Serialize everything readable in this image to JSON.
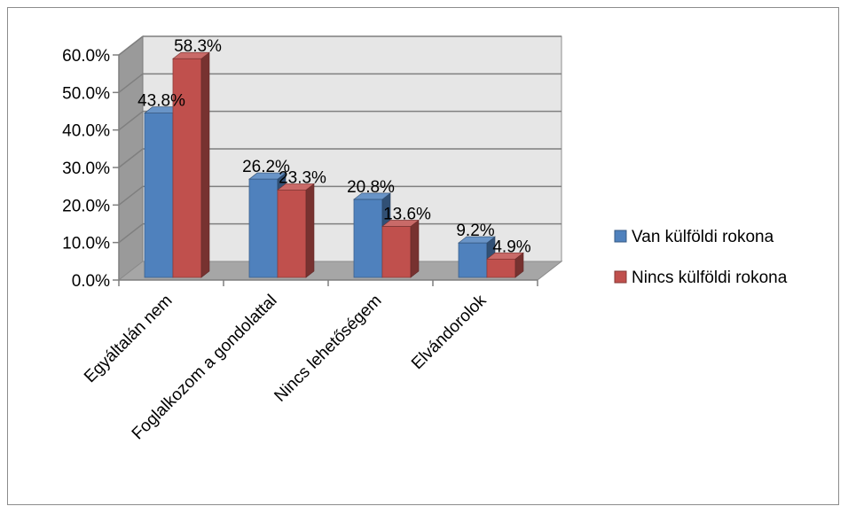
{
  "chart_data": {
    "type": "bar",
    "categories": [
      "Egyáltalán nem",
      "Foglalkozom a gondolattal",
      "Nincs lehetőségem",
      "Elvándorolok"
    ],
    "series": [
      {
        "name": "Van külföldi rokona",
        "values": [
          43.8,
          26.2,
          20.8,
          9.2
        ],
        "labels": [
          "43.8%",
          "26.2%",
          "20.8%",
          "9.2%"
        ],
        "color": "#4f81bd"
      },
      {
        "name": "Nincs külföldi rokona",
        "values": [
          58.3,
          23.3,
          13.6,
          4.9
        ],
        "labels": [
          "58.3%",
          "23.3%",
          "13.6%",
          "4.9%"
        ],
        "color": "#c0504d"
      }
    ],
    "ylim": [
      0,
      60
    ],
    "yticks": [
      "0.0%",
      "10.0%",
      "20.0%",
      "30.0%",
      "40.0%",
      "50.0%",
      "60.0%"
    ],
    "grid": true,
    "legend_position": "right",
    "style": "3d-clustered"
  }
}
